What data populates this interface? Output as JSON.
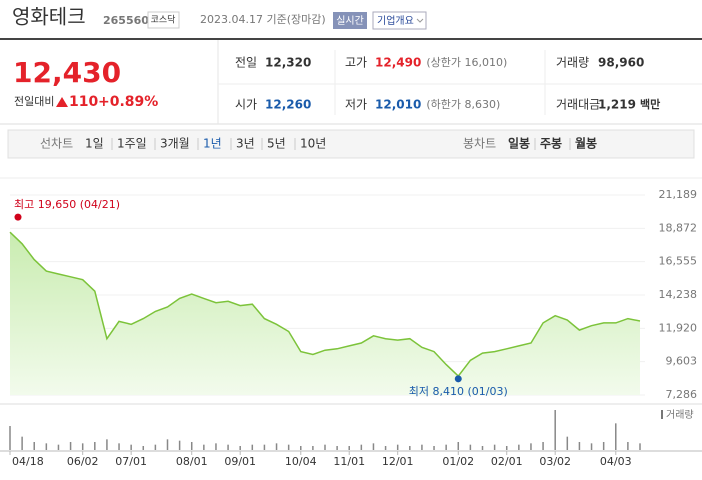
{
  "header": {
    "name": "영화테크",
    "code": "265560",
    "market": "코스닥",
    "date": "2023.04.17 기준(장마감)",
    "realtime": "실시간",
    "company_info": "기업개요"
  },
  "quote": {
    "price": "12,430",
    "change_label": "전일대비",
    "change": "110",
    "change_pct": "+0.89%"
  },
  "stats": [
    {
      "label": "전일",
      "value": "12,320"
    },
    {
      "label": "고가",
      "value": "12,490",
      "note": "(상한가 16,010)"
    },
    {
      "label": "거래량",
      "value": "98,960"
    },
    {
      "label": "시가",
      "value": "12,260"
    },
    {
      "label": "저가",
      "value": "12,010",
      "note": "(하한가 8,630)"
    },
    {
      "label": "거래대금",
      "value": "1,219",
      "unit": "백만"
    }
  ],
  "tabs": {
    "line_label": "선차트",
    "periods": [
      "1일",
      "1주일",
      "3개월",
      "1년",
      "3년",
      "5년",
      "10년"
    ],
    "selected": "1년",
    "candle_label": "봉차트",
    "candles": [
      "일봉",
      "주봉",
      "월봉"
    ]
  },
  "chart_data": {
    "type": "area",
    "color": "#7cc33a",
    "categories": [
      "04/18",
      null,
      null,
      null,
      null,
      null,
      "06/02",
      null,
      null,
      null,
      "07/01",
      null,
      null,
      null,
      null,
      "08/01",
      null,
      null,
      null,
      "09/01",
      null,
      null,
      null,
      null,
      "10/04",
      null,
      null,
      null,
      "11/01",
      null,
      null,
      null,
      "12/01",
      null,
      null,
      null,
      null,
      "01/02",
      null,
      null,
      null,
      "02/01",
      null,
      null,
      null,
      "03/02",
      null,
      null,
      null,
      null,
      "04/03",
      null,
      null
    ],
    "values": [
      18600,
      17800,
      16700,
      15900,
      15700,
      15500,
      15300,
      14500,
      11200,
      12400,
      12200,
      12600,
      13100,
      13400,
      14000,
      14300,
      14000,
      13700,
      13800,
      13500,
      13600,
      12600,
      12200,
      11700,
      10300,
      10100,
      10400,
      10500,
      10700,
      10900,
      11400,
      11200,
      11100,
      11200,
      10600,
      10300,
      9400,
      8600,
      9700,
      10200,
      10300,
      10500,
      10700,
      10900,
      12300,
      12800,
      12500,
      11800,
      12100,
      12300,
      12300,
      12600,
      12430
    ],
    "volume_label": "거래량",
    "volume": [
      900,
      500,
      300,
      250,
      200,
      300,
      250,
      300,
      400,
      250,
      200,
      150,
      200,
      400,
      350,
      300,
      200,
      250,
      200,
      150,
      200,
      200,
      250,
      200,
      150,
      150,
      200,
      150,
      150,
      200,
      250,
      150,
      200,
      150,
      200,
      150,
      200,
      300,
      200,
      150,
      200,
      150,
      200,
      250,
      300,
      1500,
      500,
      300,
      250,
      300,
      1000,
      300,
      250
    ],
    "ylim": [
      7286,
      21189
    ],
    "yticks": [
      {
        "value": 7286,
        "label": "7,286"
      },
      {
        "value": 9603,
        "label": "9,603"
      },
      {
        "value": 11920,
        "label": "11,920"
      },
      {
        "value": 14238,
        "label": "14,238"
      },
      {
        "value": 16555,
        "label": "16,555"
      },
      {
        "value": 18872,
        "label": "18,872"
      },
      {
        "value": 21189,
        "label": "21,189"
      }
    ],
    "grid": true,
    "high": {
      "label": "최고 19,650 (04/21)",
      "value": 19650,
      "color": "#d0021b"
    },
    "low": {
      "label": "최저 8,410 (01/03)",
      "value": 8410,
      "color": "#1a5bab"
    }
  }
}
